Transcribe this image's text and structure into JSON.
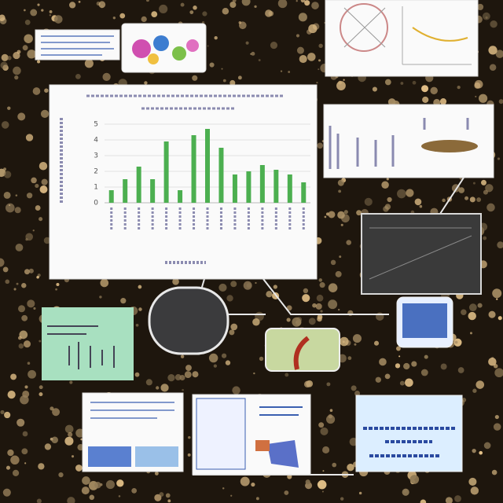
{
  "chart_data": {
    "type": "bar",
    "categories": [
      null,
      null,
      null,
      null,
      null,
      null,
      null,
      null,
      null,
      null,
      null,
      null,
      null,
      null,
      null
    ],
    "values": [
      0.8,
      1.5,
      2.3,
      1.5,
      3.9,
      0.8,
      4.3,
      4.7,
      3.5,
      1.8,
      2.0,
      2.4,
      2.1,
      1.8,
      1.3
    ],
    "color": "#4caf50",
    "ylim": [
      0,
      5
    ],
    "yticks": [
      0,
      1,
      2,
      3,
      4,
      5
    ],
    "grid": true
  }
}
